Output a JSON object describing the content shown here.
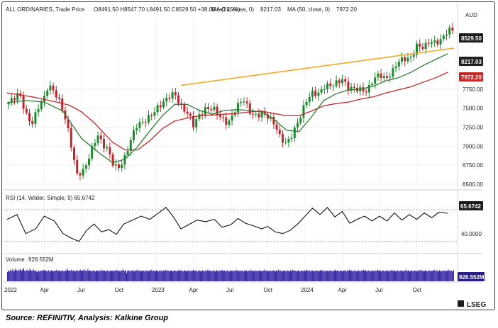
{
  "header": {
    "instrument": "ALL ORDINARIES, Trade Price",
    "ohlc": "O8491.50  H8547.70  L8491.50  C8529.50  +38.00 (+0.45%)",
    "ma21_label": "MA (21, close, 0)",
    "ma21_value": "8217.03",
    "ma50_label": "MA (50, close, 0)",
    "ma50_value": "7972.20",
    "currency": "AUD"
  },
  "rsi_header": "RSI (14, Wilder, Simple, 9)  65.6742",
  "volume_header": "Volume",
  "volume_header_value": "928.552M",
  "badges": {
    "last": "8529.50",
    "ma21": "8217.03",
    "ma50": "7972.20",
    "rsi": "65.6742",
    "volume": "928.552M"
  },
  "brand": "LSEG",
  "source": "Source: REFINITIV, Analysis: Kalkine Group",
  "colors": {
    "up": "#1e8c2e",
    "down": "#c0262d",
    "ma21": "#2e7d32",
    "ma50": "#c62828",
    "trend": "#f5a623",
    "rsi": "#111111",
    "volume": "#3a2aa8"
  },
  "chart_data": {
    "type": "candlestick",
    "x_tick_labels": [
      "2022",
      "Apr",
      "Jul",
      "Oct",
      "2023",
      "Apr",
      "Jul",
      "Oct",
      "2024",
      "Apr",
      "Jul",
      "Oct"
    ],
    "x_tick_months": [
      0,
      3,
      6,
      9,
      12,
      15,
      18,
      21,
      24,
      27,
      30,
      33
    ],
    "y_tick_labels": [
      "8529.50",
      "8217.03",
      "7972.20",
      "7750.00",
      "7500.00",
      "7250.00",
      "7000.00",
      "6750.00",
      "6500.00"
    ],
    "y_ticks": [
      7750,
      7500,
      7250,
      7000,
      6750,
      6500
    ],
    "ylim": [
      6480,
      8700
    ],
    "rsi_ticks": [
      "40.0000"
    ],
    "rsi_levels": [
      70,
      30
    ],
    "close_path": [
      [
        0,
        7550
      ],
      [
        1,
        7700
      ],
      [
        1.5,
        7420
      ],
      [
        2,
        7290
      ],
      [
        2.5,
        7510
      ],
      [
        3,
        7640
      ],
      [
        3.3,
        7800
      ],
      [
        3.8,
        7720
      ],
      [
        4.3,
        7560
      ],
      [
        4.8,
        7300
      ],
      [
        5.3,
        6900
      ],
      [
        5.6,
        6620
      ],
      [
        6.2,
        6680
      ],
      [
        6.8,
        6950
      ],
      [
        7.3,
        7150
      ],
      [
        7.7,
        7020
      ],
      [
        8.1,
        6960
      ],
      [
        8.5,
        6780
      ],
      [
        8.9,
        6700
      ],
      [
        9.4,
        6810
      ],
      [
        9.9,
        7050
      ],
      [
        10.4,
        7270
      ],
      [
        11,
        7320
      ],
      [
        11.5,
        7390
      ],
      [
        12.2,
        7520
      ],
      [
        12.8,
        7610
      ],
      [
        13.2,
        7680
      ],
      [
        13.5,
        7690
      ],
      [
        14,
        7520
      ],
      [
        14.6,
        7420
      ],
      [
        15,
        7280
      ],
      [
        15.5,
        7410
      ],
      [
        16,
        7490
      ],
      [
        16.6,
        7500
      ],
      [
        17.2,
        7380
      ],
      [
        17.8,
        7290
      ],
      [
        18.4,
        7490
      ],
      [
        19,
        7630
      ],
      [
        19.6,
        7440
      ],
      [
        20,
        7400
      ],
      [
        20.6,
        7430
      ],
      [
        21.1,
        7380
      ],
      [
        21.6,
        7280
      ],
      [
        22,
        7110
      ],
      [
        22.5,
        7030
      ],
      [
        23,
        7160
      ],
      [
        23.6,
        7380
      ],
      [
        24.1,
        7600
      ],
      [
        24.6,
        7700
      ],
      [
        25.1,
        7690
      ],
      [
        25.6,
        7790
      ],
      [
        26.1,
        7800
      ],
      [
        26.5,
        7830
      ],
      [
        27,
        7880
      ],
      [
        27.5,
        7760
      ],
      [
        28,
        7760
      ],
      [
        28.5,
        7740
      ],
      [
        29,
        7720
      ],
      [
        29.5,
        7880
      ],
      [
        30,
        7950
      ],
      [
        30.5,
        7880
      ],
      [
        31,
        7970
      ],
      [
        31.5,
        8120
      ],
      [
        32,
        8150
      ],
      [
        32.5,
        8150
      ],
      [
        33,
        8320
      ],
      [
        33.6,
        8300
      ],
      [
        34,
        8380
      ],
      [
        34.5,
        8360
      ],
      [
        35,
        8400
      ],
      [
        35.5,
        8529.5
      ]
    ],
    "ma21_path": [
      [
        0,
        7570
      ],
      [
        1.5,
        7600
      ],
      [
        3,
        7580
      ],
      [
        4.5,
        7460
      ],
      [
        6,
        7100
      ],
      [
        7.5,
        6900
      ],
      [
        8.5,
        6780
      ],
      [
        9.5,
        6830
      ],
      [
        10.5,
        6990
      ],
      [
        11.5,
        7200
      ],
      [
        12.5,
        7400
      ],
      [
        13.5,
        7550
      ],
      [
        14.5,
        7550
      ],
      [
        15.5,
        7470
      ],
      [
        16.5,
        7420
      ],
      [
        17.5,
        7470
      ],
      [
        18.5,
        7480
      ],
      [
        19.5,
        7470
      ],
      [
        20.5,
        7450
      ],
      [
        21.5,
        7350
      ],
      [
        22.5,
        7210
      ],
      [
        23.5,
        7190
      ],
      [
        24.5,
        7380
      ],
      [
        25.5,
        7600
      ],
      [
        26.5,
        7690
      ],
      [
        27.5,
        7740
      ],
      [
        28.5,
        7750
      ],
      [
        29.5,
        7790
      ],
      [
        30.5,
        7860
      ],
      [
        31.5,
        7900
      ],
      [
        32.5,
        7970
      ],
      [
        33.5,
        8060
      ],
      [
        34.5,
        8140
      ],
      [
        35.5,
        8217
      ]
    ],
    "ma50_path": [
      [
        0,
        7700
      ],
      [
        2,
        7650
      ],
      [
        4,
        7580
      ],
      [
        5,
        7540
      ],
      [
        6,
        7450
      ],
      [
        7,
        7310
      ],
      [
        8.5,
        7050
      ],
      [
        9.5,
        6950
      ],
      [
        10.5,
        6950
      ],
      [
        11.5,
        7070
      ],
      [
        12.5,
        7230
      ],
      [
        13.5,
        7330
      ],
      [
        14.5,
        7370
      ],
      [
        15.5,
        7400
      ],
      [
        16.5,
        7410
      ],
      [
        17.5,
        7420
      ],
      [
        18.5,
        7430
      ],
      [
        19.5,
        7450
      ],
      [
        20.5,
        7460
      ],
      [
        21.5,
        7430
      ],
      [
        22.5,
        7400
      ],
      [
        23.5,
        7400
      ],
      [
        24.5,
        7460
      ],
      [
        25.5,
        7530
      ],
      [
        26.5,
        7560
      ],
      [
        27.5,
        7580
      ],
      [
        28.5,
        7620
      ],
      [
        29.5,
        7650
      ],
      [
        30.5,
        7700
      ],
      [
        31.5,
        7740
      ],
      [
        32.5,
        7780
      ],
      [
        33.5,
        7840
      ],
      [
        34.5,
        7900
      ],
      [
        35.5,
        7972.2
      ]
    ],
    "trendline": [
      [
        14,
        7800
      ],
      [
        36,
        8290
      ]
    ],
    "rsi_path": [
      [
        0,
        58
      ],
      [
        0.8,
        64
      ],
      [
        1.5,
        40
      ],
      [
        2.3,
        46
      ],
      [
        3,
        62
      ],
      [
        3.8,
        56
      ],
      [
        4.5,
        40
      ],
      [
        5.2,
        34
      ],
      [
        5.8,
        30
      ],
      [
        6.4,
        44
      ],
      [
        7,
        52
      ],
      [
        7.6,
        42
      ],
      [
        8.2,
        45
      ],
      [
        8.8,
        39
      ],
      [
        9.4,
        52
      ],
      [
        10.1,
        57
      ],
      [
        10.8,
        62
      ],
      [
        11.5,
        58
      ],
      [
        12.2,
        66
      ],
      [
        12.8,
        73
      ],
      [
        13.4,
        61
      ],
      [
        14,
        46
      ],
      [
        14.6,
        51
      ],
      [
        15.3,
        57
      ],
      [
        16,
        55
      ],
      [
        16.7,
        58
      ],
      [
        17.3,
        48
      ],
      [
        18,
        51
      ],
      [
        18.6,
        59
      ],
      [
        19.2,
        53
      ],
      [
        19.8,
        50
      ],
      [
        20.5,
        46
      ],
      [
        21,
        49
      ],
      [
        21.6,
        42
      ],
      [
        22.2,
        40
      ],
      [
        22.8,
        44
      ],
      [
        23.4,
        52
      ],
      [
        24,
        62
      ],
      [
        24.6,
        72
      ],
      [
        25.2,
        64
      ],
      [
        25.8,
        73
      ],
      [
        26.4,
        61
      ],
      [
        27,
        68
      ],
      [
        27.6,
        53
      ],
      [
        28.2,
        58
      ],
      [
        28.8,
        62
      ],
      [
        29.4,
        56
      ],
      [
        30,
        62
      ],
      [
        30.6,
        56
      ],
      [
        31.2,
        66
      ],
      [
        31.8,
        57
      ],
      [
        32.4,
        64
      ],
      [
        33,
        58
      ],
      [
        33.6,
        66
      ],
      [
        34.2,
        60
      ],
      [
        34.8,
        67
      ],
      [
        35.5,
        65.67
      ]
    ],
    "volume_levels": [
      0.52,
      0.6,
      0.58,
      0.55,
      0.66,
      0.62,
      0.58,
      0.7,
      0.6,
      0.55,
      0.64,
      0.72,
      0.63,
      0.6,
      0.58,
      0.66,
      0.6,
      0.7,
      0.65,
      0.58,
      0.62,
      0.75,
      0.7,
      0.6,
      0.55,
      0.6,
      0.66,
      0.62,
      0.6,
      0.58,
      0.72,
      0.64,
      0.6,
      0.58,
      0.62,
      0.68,
      0.6,
      0.58,
      0.62,
      0.55,
      0.5,
      0.62,
      0.58,
      0.55,
      0.6,
      0.57,
      0.62,
      0.58,
      0.6,
      0.66,
      0.6,
      0.62,
      0.58,
      0.55,
      0.6,
      0.64,
      0.58,
      0.55,
      0.6,
      0.62,
      0.58,
      0.6,
      0.55,
      0.62,
      0.58,
      0.6,
      0.66,
      0.6,
      0.58,
      0.62,
      0.6,
      0.55,
      0.58,
      0.62,
      0.6,
      0.58,
      0.55,
      0.6,
      0.62,
      0.58,
      0.72,
      0.64,
      0.6,
      0.62,
      0.58,
      0.6,
      0.66,
      0.6,
      0.58,
      0.62,
      0.6,
      0.55,
      0.58,
      0.64,
      0.6,
      0.58,
      0.62,
      0.6,
      0.66,
      0.6,
      0.58,
      0.62,
      0.6,
      0.68,
      0.6,
      0.62,
      0.58,
      0.6,
      0.7,
      0.6,
      0.58,
      0.62,
      0.6,
      0.55,
      0.58,
      0.62,
      0.6,
      0.58,
      0.55,
      0.6,
      0.62,
      0.58,
      0.6,
      0.55,
      0.62,
      0.58,
      0.6,
      0.66,
      0.6,
      0.58,
      0.62,
      0.6,
      0.55,
      0.58,
      0.62,
      0.6,
      0.58,
      0.55,
      0.6,
      0.62,
      0.58,
      0.6,
      0.55,
      0.62,
      0.58,
      0.6,
      0.66,
      0.6,
      0.58,
      0.62,
      0.6,
      0.55,
      0.58,
      0.62,
      0.6,
      0.68,
      0.6,
      0.58,
      0.62,
      0.6,
      0.45,
      0.58,
      0.6,
      0.62,
      0.58,
      0.55,
      0.6,
      0.62,
      0.58,
      0.6,
      0.55,
      0.62,
      0.58,
      0.6,
      0.66,
      0.6,
      0.58,
      0.62,
      0.6,
      0.55,
      0.58,
      0.62,
      0.6,
      0.58,
      0.55,
      0.6,
      0.62,
      0.58,
      0.6,
      0.55,
      0.62,
      0.58,
      0.6,
      0.66,
      0.6,
      0.58,
      0.62,
      0.6,
      0.55,
      0.58,
      0.62,
      0.6,
      0.58,
      0.55,
      0.6,
      0.62,
      0.58,
      0.6,
      0.55,
      0.62,
      0.58,
      0.6,
      0.66,
      0.6,
      0.58,
      0.62,
      0.6,
      0.55,
      0.58,
      0.62,
      0.6,
      0.58,
      0.55,
      0.6,
      0.62,
      0.58,
      0.6,
      0.55,
      0.62,
      0.58,
      0.6,
      0.66,
      0.6,
      0.58,
      0.62,
      0.6,
      0.55,
      0.58,
      0.62,
      0.6,
      0.58,
      0.55,
      0.6,
      0.62,
      0.58,
      0.6,
      0.55,
      0.62,
      0.58,
      0.6,
      0.66,
      0.6,
      0.58,
      0.62,
      0.6,
      0.55,
      0.58,
      0.62,
      0.6,
      0.58,
      0.55,
      0.6,
      0.62,
      0.58,
      0.6,
      0.55,
      0.62,
      0.58,
      0.6,
      0.66,
      0.6,
      0.58,
      0.62,
      0.6,
      0.55,
      0.58,
      0.62,
      0.6,
      0.58,
      0.55,
      0.6,
      0.62,
      0.58,
      0.6,
      0.55,
      0.62,
      0.58,
      0.6,
      0.66,
      0.6,
      0.58,
      0.62,
      0.6,
      0.55,
      0.58,
      0.62,
      0.6,
      0.58,
      0.55,
      0.6,
      0.62,
      0.58,
      0.6,
      0.55,
      0.62,
      0.58,
      0.6,
      0.66,
      0.6,
      0.58,
      0.62,
      0.6,
      0.55,
      0.58,
      0.62,
      0.6,
      0.58,
      0.55,
      0.6,
      0.62,
      0.58,
      0.6,
      0.55,
      0.62,
      0.58,
      0.6,
      0.66,
      0.6,
      0.58,
      0.62,
      0.6,
      0.55,
      0.58,
      0.62,
      0.6,
      0.58,
      0.55,
      0.6,
      0.62,
      0.58,
      0.6,
      0.55,
      0.62,
      0.58,
      0.6,
      0.66,
      0.6,
      0.58,
      0.62,
      0.6,
      0.55,
      0.58,
      0.62,
      0.6,
      0.58,
      0.55,
      0.6,
      0.62,
      0.58,
      0.6,
      0.55,
      0.62,
      0.58,
      0.6,
      0.66,
      0.6,
      0.58,
      0.62,
      0.6,
      0.55,
      0.58,
      0.62,
      0.6,
      0.58,
      0.55,
      0.6,
      0.62,
      0.58,
      0.6,
      0.55,
      0.62,
      0.58,
      0.6,
      0.66,
      0.6,
      0.58,
      0.62,
      0.6,
      0.55,
      0.58,
      0.62,
      0.6,
      0.58,
      0.55,
      0.6,
      0.62,
      0.58,
      0.6,
      0.55,
      0.62,
      0.58,
      0.6,
      0.66,
      0.6,
      0.58,
      0.62,
      0.6,
      0.55,
      0.58,
      0.62,
      0.6,
      0.58,
      0.55,
      0.6,
      0.62,
      0.58,
      0.6,
      0.55,
      0.62,
      0.58,
      0.6,
      0.66,
      0.6,
      0.58,
      0.62,
      0.6,
      0.55,
      0.58,
      0.62,
      0.6,
      0.58,
      0.55,
      0.6,
      0.62,
      0.58,
      0.6,
      0.55,
      0.62,
      0.58,
      0.6,
      0.66,
      0.6,
      0.58,
      0.62,
      0.6,
      0.55,
      0.58,
      0.62,
      0.6,
      0.58,
      0.55,
      0.6,
      0.62,
      0.58,
      0.6,
      0.55,
      0.62,
      0.58,
      0.6,
      0.66,
      0.6,
      0.58,
      0.62,
      0.6,
      0.55,
      0.58,
      0.62,
      0.6,
      0.58,
      0.55,
      0.6,
      0.62,
      0.58,
      0.6,
      0.55,
      0.62,
      0.58,
      0.6,
      0.66,
      0.6,
      0.58,
      0.62,
      0.6,
      0.55,
      0.58,
      0.62,
      0.6,
      0.58,
      0.55,
      0.6,
      0.62,
      0.58,
      0.6,
      0.55,
      0.62,
      0.58,
      0.6,
      0.66,
      0.6,
      0.58,
      0.62,
      0.6,
      0.55,
      0.58,
      0.62,
      0.6,
      0.58,
      0.55,
      0.6,
      0.62,
      0.58,
      0.6,
      0.55,
      0.62,
      0.58,
      0.6,
      0.66,
      0.6,
      0.58,
      0.62,
      0.6,
      0.55,
      0.58,
      0.62,
      0.6,
      0.58,
      0.55,
      0.6,
      0.62,
      0.58,
      0.6,
      0.55,
      0.62,
      0.58,
      0.6,
      0.66,
      0.6,
      0.58,
      0.62,
      0.6,
      0.55,
      0.58,
      0.62,
      0.6,
      0.58,
      0.55,
      0.6,
      0.62,
      0.58,
      0.6,
      0.55,
      0.62,
      0.58,
      0.6,
      0.66,
      0.6,
      0.58,
      0.62,
      0.6,
      0.55,
      0.58,
      0.62,
      0.6,
      0.58,
      0.55,
      0.6,
      0.62,
      0.58,
      0.6,
      0.55,
      0.62,
      0.58,
      0.6,
      0.66,
      0.6,
      0.58,
      0.62,
      0.6,
      0.55,
      0.58,
      0.62,
      0.6,
      0.58,
      0.55,
      0.6,
      0.62,
      0.58,
      0.6,
      0.55,
      0.62,
      0.58,
      0.6,
      0.66,
      0.6,
      0.58,
      0.62,
      0.6,
      0.55,
      0.58,
      0.62
    ]
  }
}
